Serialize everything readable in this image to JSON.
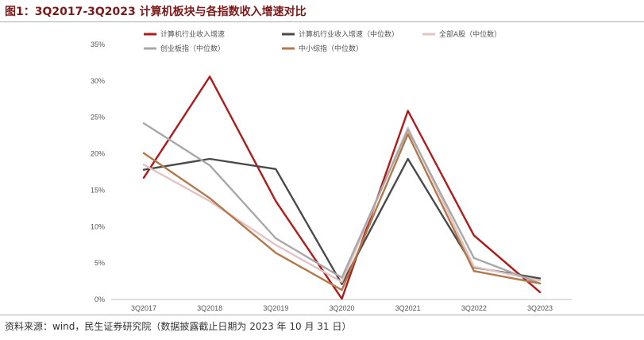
{
  "figure": {
    "title": "图1：3Q2017-3Q2023 计算机板块与各指数收入增速对比",
    "source": "资料来源：wind，民生证券研究院（数据披露截止日期为 2023 年 10 月 31 日）"
  },
  "chart_data": {
    "type": "line",
    "categories": [
      "3Q2017",
      "3Q2018",
      "3Q2019",
      "3Q2020",
      "3Q2021",
      "3Q2022",
      "3Q2023"
    ],
    "y_tick_labels": [
      "0%",
      "5%",
      "10%",
      "15%",
      "20%",
      "25%",
      "30%",
      "35%"
    ],
    "ylim": [
      0,
      35
    ],
    "grid": false,
    "legend_position": "top",
    "series": [
      {
        "name": "计算机行业收入增速",
        "color": "#b01a1a",
        "values": [
          16.7,
          30.6,
          13.5,
          0.1,
          25.9,
          8.8,
          1.0
        ]
      },
      {
        "name": "计算机行业收入增速（中位数）",
        "color": "#4a4a4a",
        "values": [
          17.8,
          19.3,
          17.9,
          2.1,
          19.3,
          4.4,
          2.9
        ]
      },
      {
        "name": "全部A股（中位数）",
        "color": "#e3c3c3",
        "values": [
          18.5,
          13.5,
          7.5,
          2.4,
          23.6,
          4.5,
          2.6
        ]
      },
      {
        "name": "创业板指（中位数）",
        "color": "#a8a8a8",
        "values": [
          24.2,
          18.4,
          8.4,
          3.0,
          23.3,
          5.7,
          2.2
        ]
      },
      {
        "name": "中小综指（中位数）",
        "color": "#b5784a",
        "values": [
          20.1,
          13.9,
          6.4,
          1.3,
          22.7,
          3.9,
          2.2
        ]
      }
    ]
  }
}
